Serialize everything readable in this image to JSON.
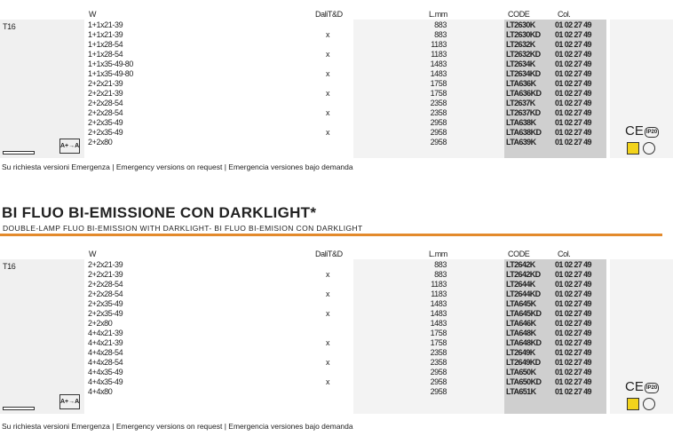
{
  "tables": [
    {
      "headers": {
        "w": "W",
        "dali": "DaliT&D",
        "length": "L.mm",
        "code": "CODE",
        "col": "Col."
      },
      "lamp": "T16",
      "rows": [
        {
          "w": "1+1x21-39",
          "length": "883",
          "code": "LT2630K",
          "col": "01 02 27 49"
        },
        {
          "w": "1+1x21-39",
          "dali": "x",
          "length": "883",
          "code": "LT2630KD",
          "col": "01 02 27 49"
        },
        {
          "w": "1+1x28-54",
          "length": "1183",
          "code": "LT2632K",
          "col": "01 02 27 49"
        },
        {
          "w": "1+1x28-54",
          "dali": "x",
          "length": "1183",
          "code": "LT2632KD",
          "col": "01 02 27 49"
        },
        {
          "w": "1+1x35-49-80",
          "length": "1483",
          "code": "LT2634K",
          "col": "01 02 27 49"
        },
        {
          "w": "1+1x35-49-80",
          "dali": "x",
          "length": "1483",
          "code": "LT2634KD",
          "col": "01 02 27 49"
        },
        {
          "w": "2+2x21-39",
          "length": "1758",
          "code": "LTA636K",
          "col": "01 02 27 49"
        },
        {
          "w": "2+2x21-39",
          "dali": "x",
          "length": "1758",
          "code": "LTA636KD",
          "col": "01 02 27 49"
        },
        {
          "w": "2+2x28-54",
          "length": "2358",
          "code": "LT2637K",
          "col": "01 02 27 49"
        },
        {
          "w": "2+2x28-54",
          "dali": "x",
          "length": "2358",
          "code": "LT2637KD",
          "col": "01 02 27 49"
        },
        {
          "w": "2+2x35-49",
          "length": "2958",
          "code": "LTA638K",
          "col": "01 02 27 49"
        },
        {
          "w": "2+2x35-49",
          "dali": "x",
          "length": "2958",
          "code": "LTA638KD",
          "col": "01 02 27 49"
        },
        {
          "w": "2+2x80",
          "length": "2958",
          "code": "LTA639K",
          "col": "01 02 27 49"
        }
      ],
      "energy_label": "A+→A",
      "cert": "CE",
      "ip": "IP20",
      "footer": "Su richiesta versioni Emergenza | Emergency versions on request | Emergencia versiones bajo demanda"
    },
    {
      "headers": {
        "w": "W",
        "dali": "DaliT&D",
        "length": "L.mm",
        "code": "CODE",
        "col": "Col."
      },
      "lamp": "T16",
      "rows": [
        {
          "w": "2+2x21-39",
          "length": "883",
          "code": "LT2642K",
          "col": "01 02 27 49"
        },
        {
          "w": "2+2x21-39",
          "dali": "x",
          "length": "883",
          "code": "LT2642KD",
          "col": "01 02 27 49"
        },
        {
          "w": "2+2x28-54",
          "length": "1183",
          "code": "LT2644K",
          "col": "01 02 27 49"
        },
        {
          "w": "2+2x28-54",
          "dali": "x",
          "length": "1183",
          "code": "LT2644KD",
          "col": "01 02 27 49"
        },
        {
          "w": "2+2x35-49",
          "length": "1483",
          "code": "LTA645K",
          "col": "01 02 27 49"
        },
        {
          "w": "2+2x35-49",
          "dali": "x",
          "length": "1483",
          "code": "LTA645KD",
          "col": "01 02 27 49"
        },
        {
          "w": "2+2x80",
          "length": "1483",
          "code": "LTA646K",
          "col": "01 02 27 49"
        },
        {
          "w": "4+4x21-39",
          "length": "1758",
          "code": "LTA648K",
          "col": "01 02 27 49"
        },
        {
          "w": "4+4x21-39",
          "dali": "x",
          "length": "1758",
          "code": "LTA648KD",
          "col": "01 02 27 49"
        },
        {
          "w": "4+4x28-54",
          "length": "2358",
          "code": "LT2649K",
          "col": "01 02 27 49"
        },
        {
          "w": "4+4x28-54",
          "dali": "x",
          "length": "2358",
          "code": "LT2649KD",
          "col": "01 02 27 49"
        },
        {
          "w": "4+4x35-49",
          "length": "2958",
          "code": "LTA650K",
          "col": "01 02 27 49"
        },
        {
          "w": "4+4x35-49",
          "dali": "x",
          "length": "2958",
          "code": "LTA650KD",
          "col": "01 02 27 49"
        },
        {
          "w": "4+4x80",
          "length": "2958",
          "code": "LTA651K",
          "col": "01 02 27 49"
        }
      ],
      "energy_label": "A+→A",
      "cert": "CE",
      "ip": "IP20",
      "footer": "Su richiesta versioni Emergenza | Emergency versions on request | Emergencia versiones bajo demanda"
    }
  ],
  "section": {
    "title": "BI FLUO BI-EMISSIONE CON DARKLIGHT*",
    "subtitle": "DOUBLE-LAMP FLUO BI-EMISSION WITH DARKLIGHT- BI FLUO BI-EMISION CON DARKLIGHT"
  }
}
